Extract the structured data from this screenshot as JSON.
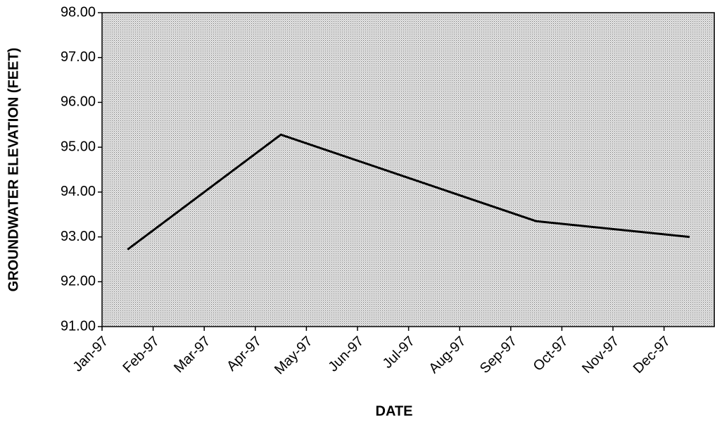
{
  "chart_data": {
    "type": "line",
    "xlabel": "DATE",
    "ylabel": "GROUNDWATER ELEVATION (FEET)",
    "xticks": [
      "Jan-97",
      "Feb-97",
      "Mar-97",
      "Apr-97",
      "May-97",
      "Jun-97",
      "Jul-97",
      "Aug-97",
      "Sep-97",
      "Oct-97",
      "Nov-97",
      "Dec-97"
    ],
    "x": [
      "Jan-97",
      "Apr-97",
      "Sep-97",
      "Dec-97"
    ],
    "values": [
      92.72,
      95.28,
      93.35,
      93.0
    ],
    "color": "#000000",
    "ylim": [
      91,
      98
    ],
    "yticks": [
      {
        "value": 91,
        "label": "91.00"
      },
      {
        "value": 92,
        "label": "92.00"
      },
      {
        "value": 93,
        "label": "93.00"
      },
      {
        "value": 94,
        "label": "94.00"
      },
      {
        "value": 95,
        "label": "95.00"
      },
      {
        "value": 96,
        "label": "96.00"
      },
      {
        "value": 97,
        "label": "97.00"
      },
      {
        "value": 98,
        "label": "98.00"
      }
    ]
  }
}
